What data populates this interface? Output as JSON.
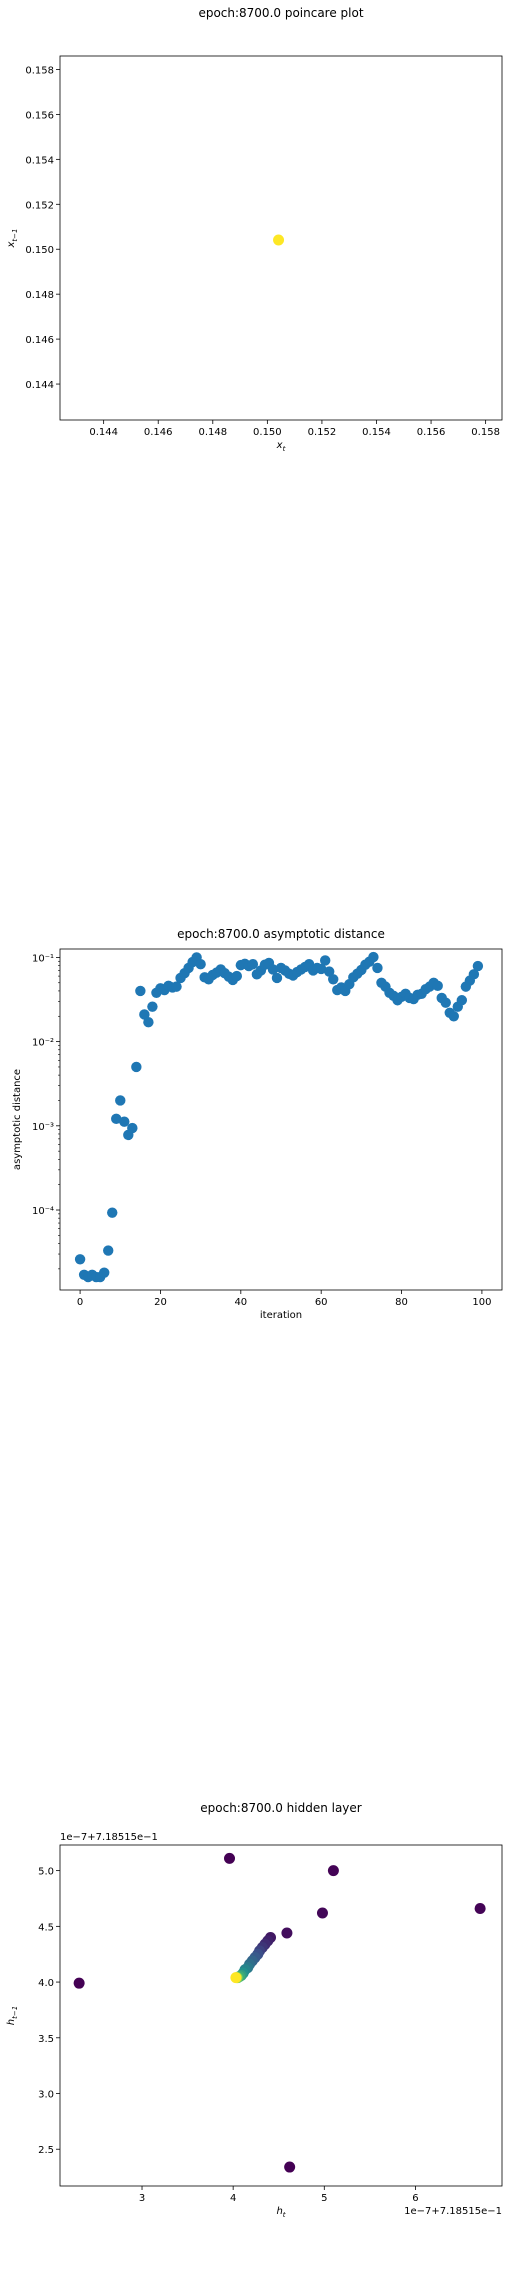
{
  "chart_data": [
    {
      "type": "scatter",
      "title": "epoch:8700.0 poincare plot",
      "xlabel": "x_t",
      "ylabel": "x_{t-1}",
      "xlim": [
        0.1424,
        0.1586
      ],
      "ylim": [
        0.1424,
        0.1586
      ],
      "xticks": [
        "0.144",
        "0.146",
        "0.148",
        "0.150",
        "0.152",
        "0.154",
        "0.156",
        "0.158"
      ],
      "yticks": [
        "0.144",
        "0.146",
        "0.148",
        "0.150",
        "0.152",
        "0.154",
        "0.156",
        "0.158"
      ],
      "points": [
        {
          "x": 0.15041,
          "y": 0.15041
        }
      ],
      "point_color": "#fde725",
      "grid": false
    },
    {
      "type": "scatter",
      "title": "epoch:8700.0 asymptotic distance",
      "xlabel": "iteration",
      "ylabel": "asymptotic distance",
      "yscale": "log",
      "xlim": [
        -5,
        105
      ],
      "ylim_log10": [
        -4.95,
        -0.9
      ],
      "xticks": [
        "0",
        "20",
        "40",
        "60",
        "80",
        "100"
      ],
      "yticks": [
        "10⁻⁴",
        "10⁻³",
        "10⁻²",
        "10⁻¹"
      ],
      "point_color": "#1f77b4",
      "x": [
        0,
        1,
        2,
        3,
        4,
        5,
        6,
        7,
        8,
        9,
        10,
        11,
        12,
        13,
        14,
        15,
        16,
        17,
        18,
        19,
        20,
        21,
        22,
        23,
        24,
        25,
        26,
        27,
        28,
        29,
        30,
        31,
        32,
        33,
        34,
        35,
        36,
        37,
        38,
        39,
        40,
        41,
        42,
        43,
        44,
        45,
        46,
        47,
        48,
        49,
        50,
        51,
        52,
        53,
        54,
        55,
        56,
        57,
        58,
        59,
        60,
        61,
        62,
        63,
        64,
        65,
        66,
        67,
        68,
        69,
        70,
        71,
        72,
        73,
        74,
        75,
        76,
        77,
        78,
        79,
        80,
        81,
        82,
        83,
        84,
        85,
        86,
        87,
        88,
        89,
        90,
        91,
        92,
        93,
        94,
        95,
        96,
        97,
        98,
        99
      ],
      "y": [
        2.6e-05,
        1.7e-05,
        1.6e-05,
        1.7e-05,
        1.6e-05,
        1.6e-05,
        1.8e-05,
        3.3e-05,
        9.3e-05,
        0.00121,
        0.002,
        0.00112,
        0.00078,
        0.00094,
        0.005,
        0.04,
        0.021,
        0.017,
        0.026,
        0.038,
        0.043,
        0.041,
        0.046,
        0.044,
        0.045,
        0.057,
        0.065,
        0.075,
        0.088,
        0.1,
        0.083,
        0.058,
        0.055,
        0.062,
        0.066,
        0.072,
        0.065,
        0.059,
        0.054,
        0.06,
        0.081,
        0.084,
        0.079,
        0.083,
        0.063,
        0.07,
        0.082,
        0.086,
        0.072,
        0.057,
        0.075,
        0.07,
        0.064,
        0.061,
        0.067,
        0.072,
        0.077,
        0.083,
        0.07,
        0.075,
        0.073,
        0.092,
        0.068,
        0.055,
        0.041,
        0.044,
        0.04,
        0.048,
        0.058,
        0.064,
        0.071,
        0.082,
        0.089,
        0.101,
        0.075,
        0.05,
        0.045,
        0.038,
        0.035,
        0.031,
        0.034,
        0.037,
        0.033,
        0.032,
        0.036,
        0.037,
        0.042,
        0.045,
        0.05,
        0.046,
        0.033,
        0.029,
        0.022,
        0.02,
        0.026,
        0.031,
        0.045,
        0.053,
        0.063,
        0.079
      ]
    },
    {
      "type": "scatter",
      "title": "epoch:8700.0 hidden layer",
      "xlabel": "h_t",
      "ylabel": "h_{t-1}",
      "offset_text": "1e−7+7.18515e−1",
      "xlim": [
        2.1,
        6.95
      ],
      "ylim": [
        2.17,
        5.23
      ],
      "xticks": [
        "3",
        "4",
        "5",
        "6"
      ],
      "yticks": [
        "2.5",
        "3.0",
        "3.5",
        "4.0",
        "4.5",
        "5.0"
      ],
      "colormap": "viridis",
      "points": [
        {
          "x": 2.31,
          "y": 3.99,
          "c": 0.0
        },
        {
          "x": 4.62,
          "y": 2.34,
          "c": 0.0
        },
        {
          "x": 3.96,
          "y": 5.11,
          "c": 0.0
        },
        {
          "x": 5.1,
          "y": 5.0,
          "c": 0.01
        },
        {
          "x": 6.71,
          "y": 4.66,
          "c": 0.01
        },
        {
          "x": 4.98,
          "y": 4.62,
          "c": 0.02
        },
        {
          "x": 4.59,
          "y": 4.44,
          "c": 0.04
        },
        {
          "x": 4.41,
          "y": 4.4,
          "c": 0.07
        },
        {
          "x": 4.38,
          "y": 4.37,
          "c": 0.1
        },
        {
          "x": 4.35,
          "y": 4.34,
          "c": 0.13
        },
        {
          "x": 4.32,
          "y": 4.31,
          "c": 0.16
        },
        {
          "x": 4.29,
          "y": 4.28,
          "c": 0.2
        },
        {
          "x": 4.27,
          "y": 4.25,
          "c": 0.24
        },
        {
          "x": 4.24,
          "y": 4.22,
          "c": 0.28
        },
        {
          "x": 4.21,
          "y": 4.19,
          "c": 0.32
        },
        {
          "x": 4.18,
          "y": 4.16,
          "c": 0.36
        },
        {
          "x": 4.16,
          "y": 4.13,
          "c": 0.4
        },
        {
          "x": 4.13,
          "y": 4.11,
          "c": 0.45
        },
        {
          "x": 4.11,
          "y": 4.08,
          "c": 0.5
        },
        {
          "x": 4.09,
          "y": 4.06,
          "c": 0.56
        },
        {
          "x": 4.07,
          "y": 4.05,
          "c": 0.62
        },
        {
          "x": 4.05,
          "y": 4.04,
          "c": 0.7
        },
        {
          "x": 4.04,
          "y": 4.04,
          "c": 0.85
        },
        {
          "x": 4.03,
          "y": 4.04,
          "c": 1.0
        }
      ],
      "grid": false
    }
  ]
}
